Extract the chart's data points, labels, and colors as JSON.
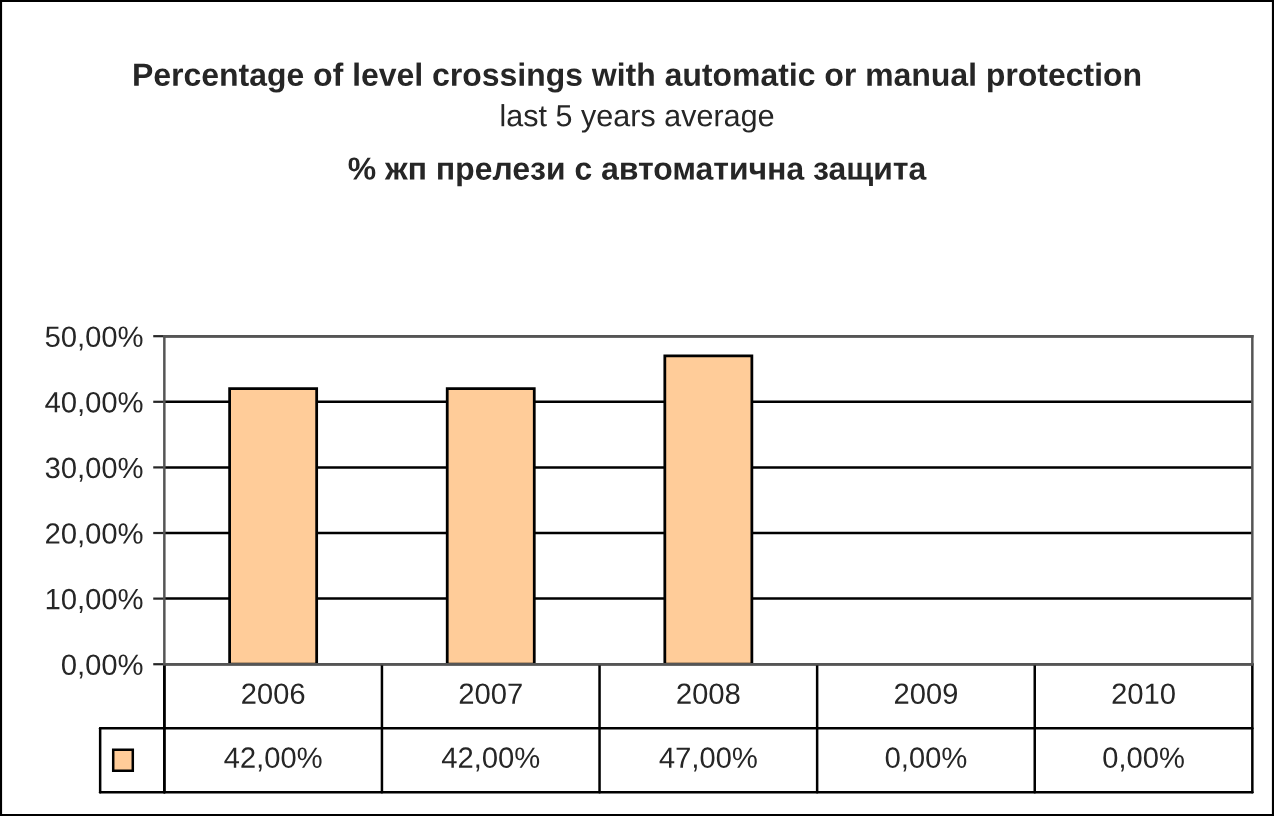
{
  "chart_data": {
    "type": "bar",
    "title": "Percentage of level crossings with automatic or manual protection",
    "subtitle": "last 5 years average",
    "annotations": [
      "% жп прелези с автоматична защита"
    ],
    "categories": [
      "2006",
      "2007",
      "2008",
      "2009",
      "2010"
    ],
    "values": [
      42,
      42,
      47,
      0,
      0
    ],
    "color": "#ffcc99",
    "value_labels": [
      "42,00%",
      "42,00%",
      "47,00%",
      "0,00%",
      "0,00%"
    ],
    "ylim": [
      0,
      50
    ],
    "yticks": [
      {
        "value": 0,
        "label": "0,00%"
      },
      {
        "value": 10,
        "label": "10,00%"
      },
      {
        "value": 20,
        "label": "20,00%"
      },
      {
        "value": 30,
        "label": "30,00%"
      },
      {
        "value": 40,
        "label": "40,00%"
      },
      {
        "value": 50,
        "label": "50,00%"
      }
    ],
    "grid": "y"
  }
}
